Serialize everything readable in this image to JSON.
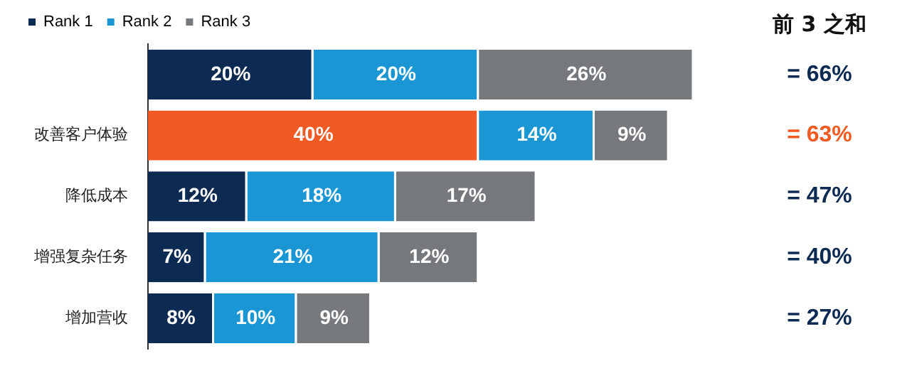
{
  "chart_data": {
    "type": "bar",
    "orientation": "horizontal",
    "stacked": true,
    "categories": [
      null,
      "改善客户体验",
      "降低成本",
      "增强复杂任务",
      "增加营收"
    ],
    "series": [
      {
        "name": "Rank 1",
        "color": "#0d2a52",
        "colors": [
          "#0d2a52",
          "#f15a22",
          "#0d2a52",
          "#0d2a52",
          "#0d2a52"
        ],
        "values": [
          20,
          40,
          12,
          7,
          8
        ],
        "value_labels": [
          "20%",
          "40%",
          "12%",
          "7%",
          "8%"
        ]
      },
      {
        "name": "Rank 2",
        "color": "#1a96d4",
        "values": [
          20,
          14,
          18,
          21,
          10
        ],
        "value_labels": [
          "20%",
          "14%",
          "18%",
          "21%",
          "10%"
        ]
      },
      {
        "name": "Rank 3",
        "color": "#75797c",
        "values": [
          26,
          9,
          17,
          12,
          9
        ],
        "value_labels": [
          "26%",
          "9%",
          "17%",
          "12%",
          "9%"
        ]
      }
    ],
    "annotations": [
      "前 3 之和",
      "= 66%",
      "= 63%",
      "= 47%",
      "= 40%",
      "= 27%"
    ],
    "tick_labels": "y",
    "grid": false,
    "legend": "top left"
  }
}
